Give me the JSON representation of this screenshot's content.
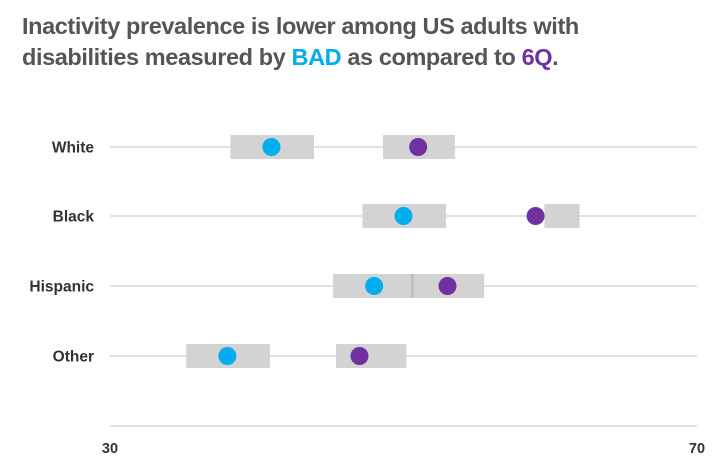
{
  "title": {
    "line1": "Inactivity prevalence is lower among US adults with",
    "line2_prefix": "disabilities measured by ",
    "bad_label": "BAD",
    "middle": " as compared to ",
    "sixq_label": "6Q",
    "suffix": "."
  },
  "colors": {
    "bad": "#00aeef",
    "sixq": "#7030a0",
    "ci_band": "#d3d3d3",
    "gridline": "#d9d9d9",
    "title_text": "#555555",
    "axis_text": "#333333"
  },
  "chart_data": {
    "type": "scatter",
    "subtype": "dot-plot-with-confidence-intervals",
    "title": "Inactivity prevalence is lower among US adults with disabilities measured by BAD as compared to 6Q.",
    "xlabel": "",
    "ylabel": "",
    "xlim": [
      30,
      70
    ],
    "x_ticks": [
      "30",
      "70"
    ],
    "categories": [
      "White",
      "Black",
      "Hispanic",
      "Other"
    ],
    "series": [
      {
        "name": "BAD",
        "color": "#00aeef",
        "values": [
          41.0,
          50.0,
          48.0,
          38.0
        ],
        "ci_low": [
          38.2,
          47.2,
          45.2,
          35.2
        ],
        "ci_high": [
          43.9,
          52.9,
          50.5,
          40.9
        ]
      },
      {
        "name": "6Q",
        "color": "#7030a0",
        "values": [
          51.0,
          59.0,
          53.0,
          47.0
        ],
        "ci_low": [
          48.6,
          59.6,
          50.5,
          45.4
        ],
        "ci_high": [
          53.5,
          62.0,
          55.5,
          50.2
        ]
      }
    ],
    "grid": true,
    "legend": "none (series named in title)"
  }
}
